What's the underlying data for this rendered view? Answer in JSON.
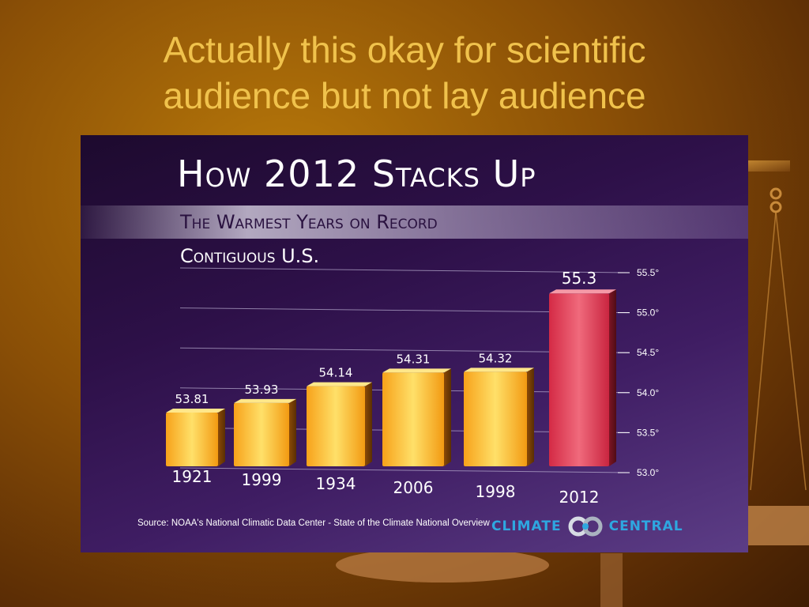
{
  "slide": {
    "title_line1": "Actually this okay for scientific",
    "title_line2": "audience but not lay audience"
  },
  "chart_data": {
    "type": "bar",
    "title": "How 2012 Stacks Up",
    "subtitle": "The Warmest Years on Record",
    "subtitle2": "Contiguous U.S.",
    "categories": [
      "1921",
      "1999",
      "1934",
      "2006",
      "1998",
      "2012"
    ],
    "values": [
      53.81,
      53.93,
      54.14,
      54.31,
      54.32,
      55.3
    ],
    "data_labels": [
      "53.81",
      "53.93",
      "54.14",
      "54.31",
      "54.32",
      "55.3"
    ],
    "ylim": [
      53.0,
      55.5
    ],
    "yticks": [
      53.0,
      53.5,
      54.0,
      54.5,
      55.0,
      55.5
    ],
    "ytick_labels": [
      "53.0°",
      "53.5°",
      "54.0°",
      "54.5°",
      "55.0°",
      "55.5°"
    ],
    "grid": true,
    "colors": {
      "regular_bar": "#f5a623",
      "highlight_bar": "#e0384f"
    },
    "highlight_category": "2012"
  },
  "footer": {
    "source": "Source: NOAA's National Climatic Data Center - State of the Climate National Overview",
    "logo_left": "CLIMATE",
    "logo_right": "CENTRAL"
  }
}
